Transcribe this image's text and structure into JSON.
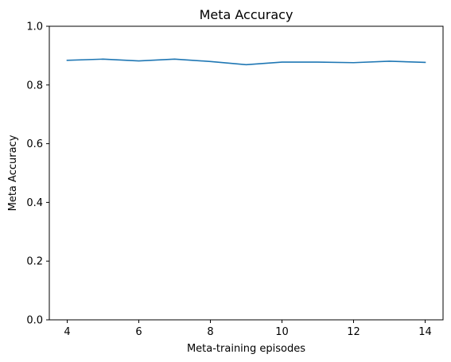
{
  "chart_data": {
    "type": "line",
    "title": "Meta Accuracy",
    "xlabel": "Meta-training episodes",
    "ylabel": "Meta Accuracy",
    "xlim": [
      3.5,
      14.5
    ],
    "ylim": [
      0,
      1
    ],
    "x_ticks": [
      4,
      6,
      8,
      10,
      12,
      14
    ],
    "y_ticks": [
      0.0,
      0.2,
      0.4,
      0.6,
      0.8,
      1.0
    ],
    "x_tick_labels": [
      "4",
      "6",
      "8",
      "10",
      "12",
      "14"
    ],
    "y_tick_labels": [
      "0.0",
      "0.2",
      "0.4",
      "0.6",
      "0.8",
      "1.0"
    ],
    "grid": false,
    "series": [
      {
        "color": "#1f77b4",
        "x": [
          4,
          5,
          6,
          7,
          8,
          9,
          10,
          11,
          12,
          13,
          14
        ],
        "y": [
          0.884,
          0.888,
          0.882,
          0.888,
          0.88,
          0.869,
          0.878,
          0.878,
          0.876,
          0.881,
          0.877
        ]
      }
    ]
  }
}
